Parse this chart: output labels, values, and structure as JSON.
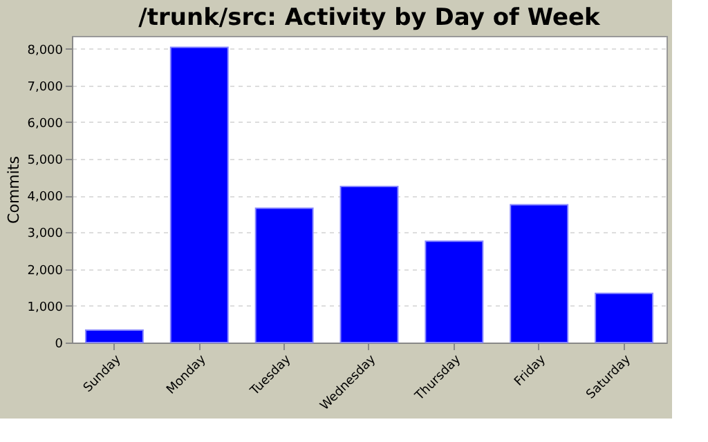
{
  "chart_data": {
    "type": "bar",
    "title": "/trunk/src: Activity by Day of Week",
    "ylabel": "Commits",
    "categories": [
      "Sunday",
      "Monday",
      "Tuesday",
      "Wednesday",
      "Thursday",
      "Friday",
      "Saturday"
    ],
    "values": [
      340,
      8040,
      3660,
      4250,
      2760,
      3750,
      1340
    ],
    "color": "#0000ff",
    "ylim": [
      0,
      8350
    ],
    "yticks": [
      0,
      {
        "value": 1000,
        "label": "1,000"
      },
      {
        "value": 2000,
        "label": "2,000"
      },
      {
        "value": 3000,
        "label": "3,000"
      },
      {
        "value": 4000,
        "label": "4,000"
      },
      {
        "value": 5000,
        "label": "5,000"
      },
      {
        "value": 6000,
        "label": "6,000"
      },
      {
        "value": 7000,
        "label": "7,000"
      },
      {
        "value": 8000,
        "label": "8,000"
      }
    ],
    "grid": "y"
  }
}
